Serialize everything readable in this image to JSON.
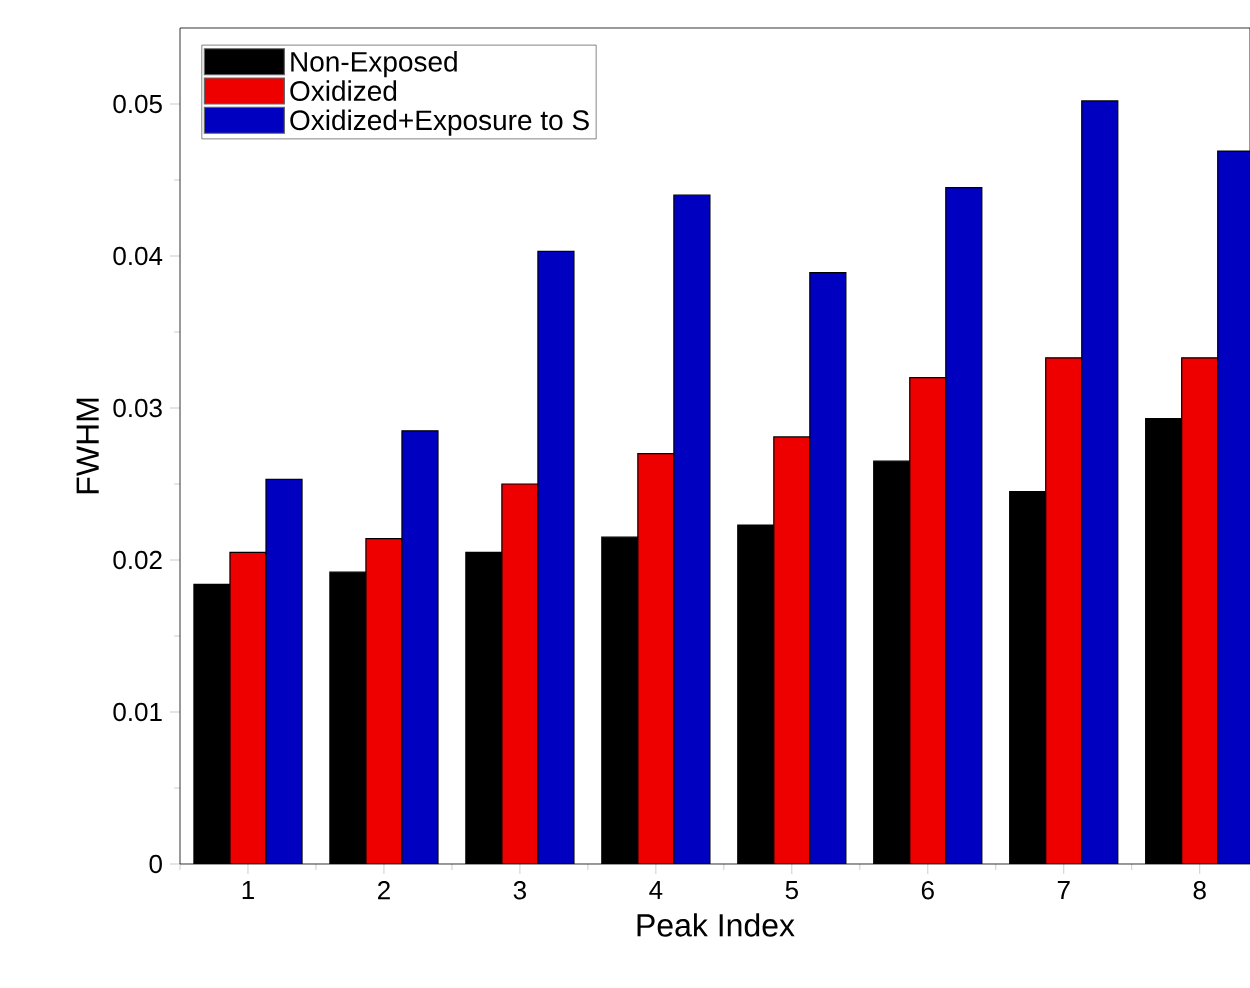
{
  "chart_data": {
    "type": "bar",
    "xlabel": "Peak Index",
    "ylabel": "FWHM",
    "categories": [
      "1",
      "2",
      "3",
      "4",
      "5",
      "6",
      "7",
      "8"
    ],
    "series": [
      {
        "name": "Non-Exposed",
        "color": "#000000",
        "values": [
          0.0184,
          0.0192,
          0.0205,
          0.0215,
          0.0223,
          0.0265,
          0.0245,
          0.0293
        ]
      },
      {
        "name": "Oxidized",
        "color": "#ee0000",
        "values": [
          0.0205,
          0.0214,
          0.025,
          0.027,
          0.0281,
          0.032,
          0.0333,
          0.0333
        ]
      },
      {
        "name": "Oxidized+Exposure to S",
        "color": "#0000c0",
        "values": [
          0.0253,
          0.0285,
          0.0403,
          0.044,
          0.0389,
          0.0445,
          0.0502,
          0.0469
        ]
      }
    ],
    "ylim": [
      0,
      0.055
    ],
    "yticks": [
      0,
      0.01,
      0.02,
      0.03,
      0.04,
      0.05
    ],
    "legend": "top left",
    "grid": false
  }
}
